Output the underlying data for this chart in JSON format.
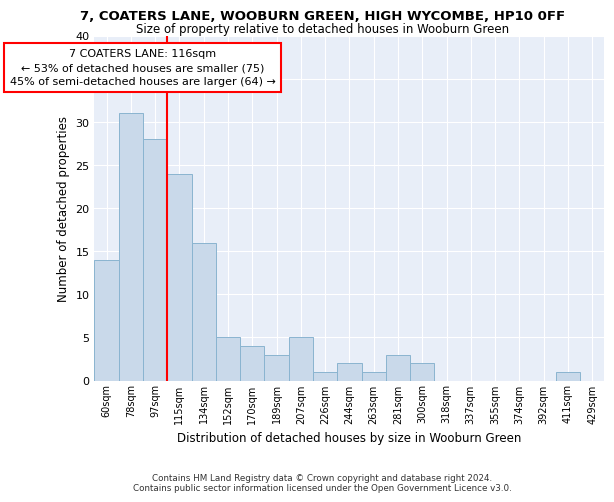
{
  "title": "7, COATERS LANE, WOOBURN GREEN, HIGH WYCOMBE, HP10 0FF",
  "subtitle": "Size of property relative to detached houses in Wooburn Green",
  "xlabel": "Distribution of detached houses by size in Wooburn Green",
  "ylabel": "Number of detached properties",
  "categories": [
    "60sqm",
    "78sqm",
    "97sqm",
    "115sqm",
    "134sqm",
    "152sqm",
    "170sqm",
    "189sqm",
    "207sqm",
    "226sqm",
    "244sqm",
    "263sqm",
    "281sqm",
    "300sqm",
    "318sqm",
    "337sqm",
    "355sqm",
    "374sqm",
    "392sqm",
    "411sqm",
    "429sqm"
  ],
  "values": [
    14,
    31,
    28,
    24,
    16,
    5,
    4,
    3,
    5,
    1,
    2,
    1,
    3,
    2,
    0,
    0,
    0,
    0,
    0,
    1,
    0
  ],
  "bar_color": "#c9d9ea",
  "bar_edge_color": "#8ab4d0",
  "red_line_index": 3,
  "annotation_text": "7 COATERS LANE: 116sqm\n← 53% of detached houses are smaller (75)\n45% of semi-detached houses are larger (64) →",
  "annotation_box_color": "white",
  "annotation_box_edge_color": "red",
  "ylim": [
    0,
    40
  ],
  "yticks": [
    0,
    5,
    10,
    15,
    20,
    25,
    30,
    35,
    40
  ],
  "background_color": "#e8eef8",
  "grid_color": "white",
  "footer_line1": "Contains HM Land Registry data © Crown copyright and database right 2024.",
  "footer_line2": "Contains public sector information licensed under the Open Government Licence v3.0."
}
